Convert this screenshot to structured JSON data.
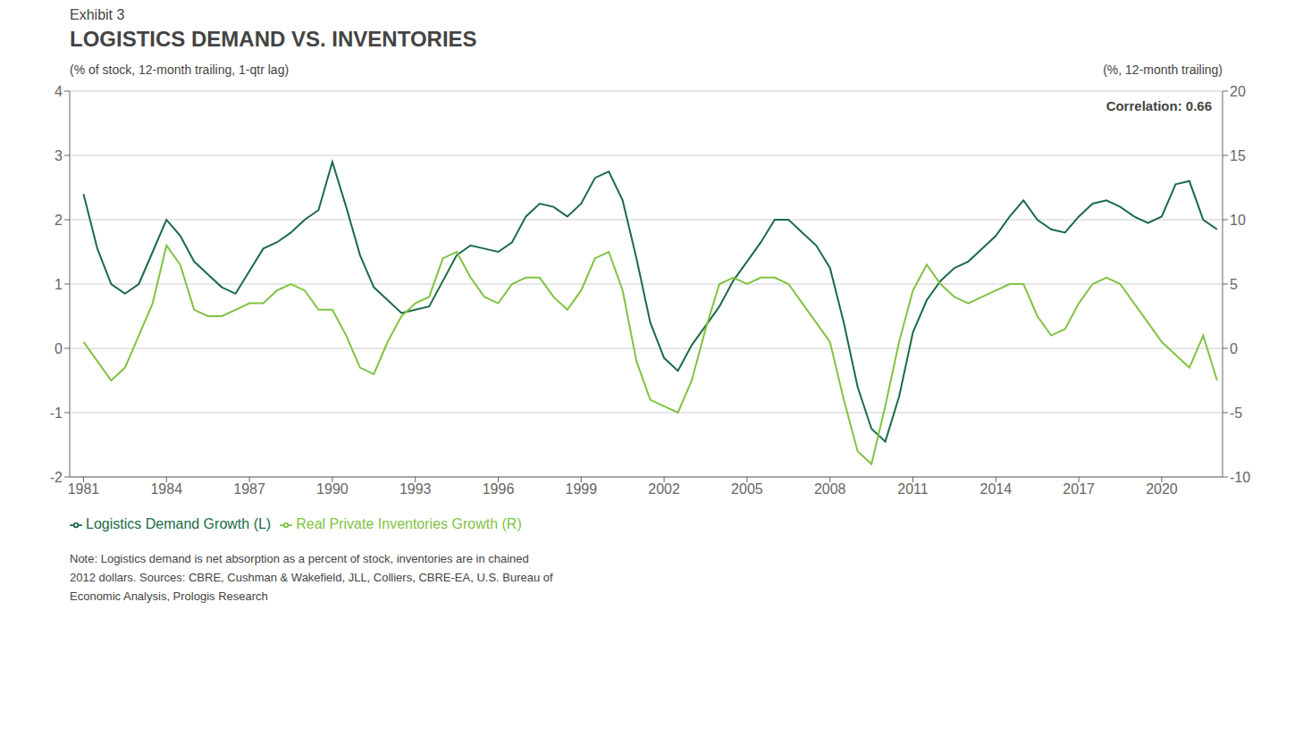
{
  "chart_data": {
    "type": "line",
    "exhibit_label": "Exhibit 3",
    "title": "LOGISTICS DEMAND VS. INVENTORIES",
    "ylabel": "(% of stock, 12-month trailing, 1-qtr lag)",
    "y2label": "(%, 12-month trailing)",
    "annotations": [
      {
        "text": "Correlation: 0.66"
      }
    ],
    "note": [
      "Note: Logistics demand is net absorption as a percent of stock, inventories are in chained",
      "2012 dollars. Sources: CBRE, Cushman & Wakefield, JLL, Colliers, CBRE-EA, U.S. Bureau of",
      "Economic Analysis, Prologis Research"
    ],
    "x": [
      1981,
      1981.5,
      1982,
      1982.5,
      1983,
      1983.5,
      1984,
      1984.5,
      1985,
      1985.5,
      1986,
      1986.5,
      1987,
      1987.5,
      1988,
      1988.5,
      1989,
      1989.5,
      1990,
      1990.5,
      1991,
      1991.5,
      1992,
      1992.5,
      1993,
      1993.5,
      1994,
      1994.5,
      1995,
      1995.5,
      1996,
      1996.5,
      1997,
      1997.5,
      1998,
      1998.5,
      1999,
      1999.5,
      2000,
      2000.5,
      2001,
      2001.5,
      2002,
      2002.5,
      2003,
      2003.5,
      2004,
      2004.5,
      2005,
      2005.5,
      2006,
      2006.5,
      2007,
      2007.5,
      2008,
      2008.5,
      2009,
      2009.5,
      2010,
      2010.5,
      2011,
      2011.5,
      2012,
      2012.5,
      2013,
      2013.5,
      2014,
      2014.5,
      2015,
      2015.5,
      2016,
      2016.5,
      2017,
      2017.5,
      2018,
      2018.5,
      2019,
      2019.5,
      2020,
      2020.5,
      2021,
      2021.5,
      2022
    ],
    "series": [
      {
        "name": "Logistics Demand Growth (L)",
        "color": "#1b6b47",
        "axis": "y",
        "values": [
          2.4,
          1.55,
          1.0,
          0.85,
          1.0,
          1.5,
          2.0,
          1.75,
          1.35,
          1.15,
          0.95,
          0.85,
          1.2,
          1.55,
          1.65,
          1.8,
          2.0,
          2.15,
          2.9,
          2.2,
          1.45,
          0.95,
          0.75,
          0.55,
          0.6,
          0.65,
          1.05,
          1.45,
          1.6,
          1.55,
          1.5,
          1.65,
          2.05,
          2.25,
          2.2,
          2.05,
          2.25,
          2.65,
          2.75,
          2.3,
          1.4,
          0.4,
          -0.15,
          -0.35,
          0.05,
          0.35,
          0.65,
          1.05,
          1.35,
          1.65,
          2.0,
          2.0,
          1.8,
          1.6,
          1.25,
          0.4,
          -0.6,
          -1.25,
          -1.45,
          -0.75,
          0.25,
          0.75,
          1.05,
          1.25,
          1.35,
          1.55,
          1.75,
          2.05,
          2.3,
          2.0,
          1.85,
          1.8,
          2.05,
          2.25,
          2.3,
          2.2,
          2.05,
          1.95,
          2.05,
          2.55,
          2.6,
          2.0,
          1.85
        ]
      },
      {
        "name": "Real Private Inventories Growth (R)",
        "color": "#80c342",
        "axis": "y2",
        "values": [
          0.5,
          -1.0,
          -2.5,
          -1.5,
          1.0,
          3.5,
          8.0,
          6.5,
          3.0,
          2.5,
          2.5,
          3.0,
          3.5,
          3.5,
          4.5,
          5.0,
          4.5,
          3.0,
          3.0,
          1.0,
          -1.5,
          -2.0,
          0.5,
          2.5,
          3.5,
          4.0,
          7.0,
          7.5,
          5.5,
          4.0,
          3.5,
          5.0,
          5.5,
          5.5,
          4.0,
          3.0,
          4.5,
          7.0,
          7.5,
          4.5,
          -1.0,
          -4.0,
          -4.5,
          -5.0,
          -2.5,
          1.5,
          5.0,
          5.5,
          5.0,
          5.5,
          5.5,
          5.0,
          3.5,
          2.0,
          0.5,
          -4.0,
          -8.0,
          -9.0,
          -4.5,
          0.5,
          4.5,
          6.5,
          5.0,
          4.0,
          3.5,
          4.0,
          4.5,
          5.0,
          5.0,
          2.5,
          1.0,
          1.5,
          3.5,
          5.0,
          5.5,
          5.0,
          3.5,
          2.0,
          0.5,
          -0.5,
          -1.5,
          1.0,
          -2.5
        ]
      }
    ],
    "xlim": [
      1980.5,
      2022.2
    ],
    "xticks": [
      1981,
      1984,
      1987,
      1990,
      1993,
      1996,
      1999,
      2002,
      2005,
      2008,
      2011,
      2014,
      2017,
      2020
    ],
    "ylim": [
      -2,
      4
    ],
    "yticks": [
      -2,
      -1,
      0,
      1,
      2,
      3,
      4
    ],
    "y2lim": [
      -10,
      20
    ],
    "y2ticks": [
      -10,
      -5,
      0,
      5,
      10,
      15,
      20
    ],
    "grid": true,
    "legend": "lower left"
  }
}
